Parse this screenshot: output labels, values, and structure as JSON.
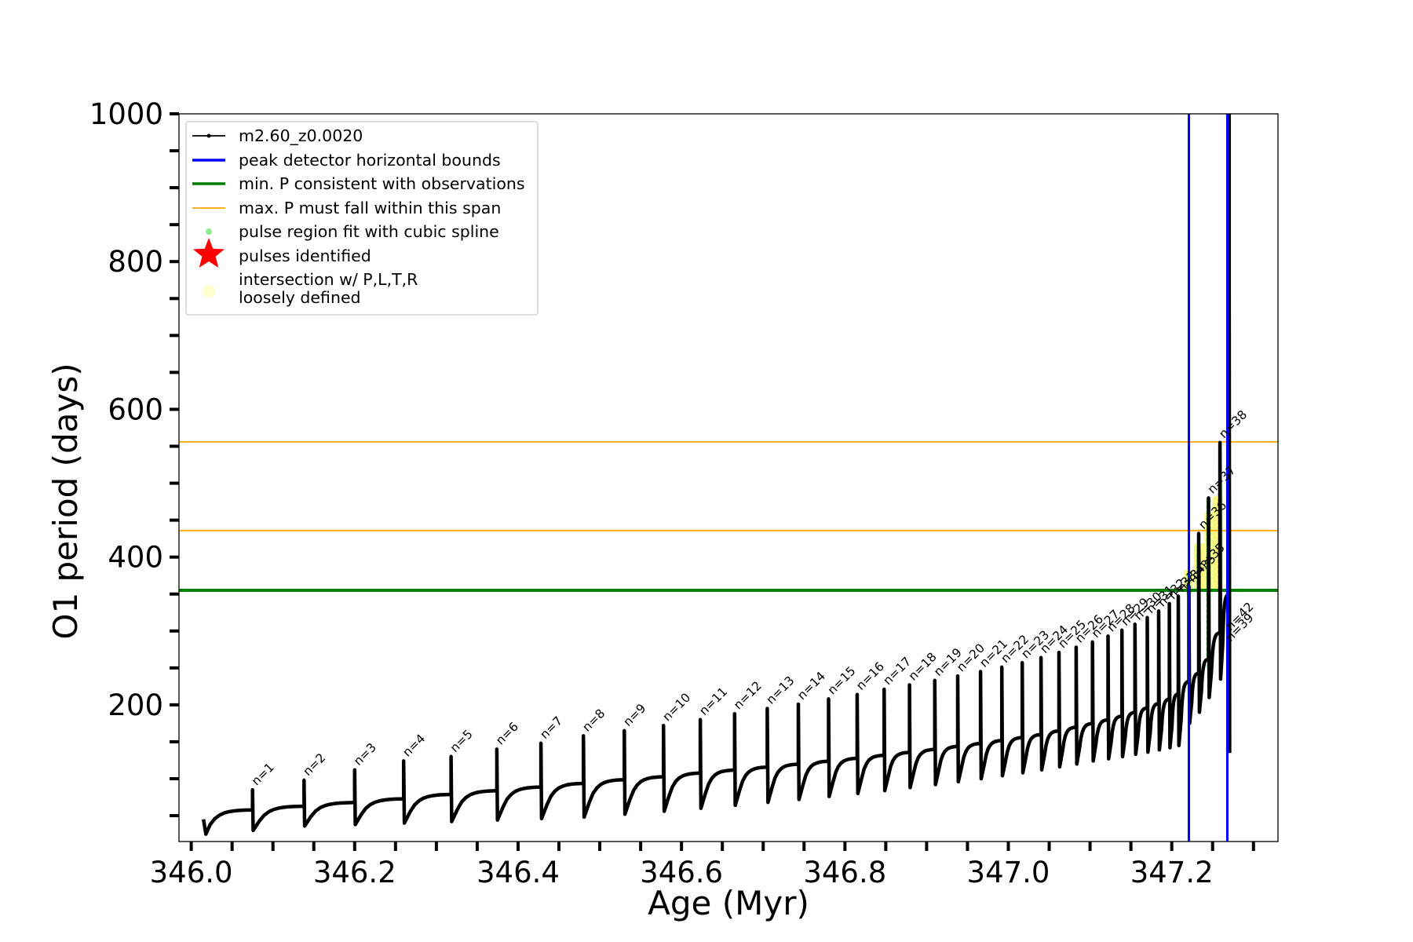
{
  "chart_data": {
    "type": "line",
    "xlabel": "Age (Myr)",
    "ylabel": "O1 period (days)",
    "xlim": [
      345.985,
      347.33
    ],
    "ylim": [
      15,
      1000
    ],
    "xticks": [
      346.0,
      346.2,
      346.4,
      346.6,
      346.8,
      347.0,
      347.2
    ],
    "xtick_labels": [
      "346.0",
      "346.2",
      "346.4",
      "346.6",
      "346.8",
      "347.0",
      "347.2"
    ],
    "xminor_step": 0.05,
    "yticks": [
      200,
      400,
      600,
      800,
      1000
    ],
    "ytick_labels": [
      "200",
      "400",
      "600",
      "800",
      "1000"
    ],
    "yminor_step": 50,
    "grid": false,
    "legend_position": "top-left",
    "legend": [
      {
        "label": "m2.60_z0.0020",
        "kind": "line-marker",
        "color": "#000000"
      },
      {
        "label": "peak detector horizontal bounds",
        "kind": "line",
        "color": "#0000ff"
      },
      {
        "label": "min. P consistent with observations",
        "kind": "line",
        "color": "#008000"
      },
      {
        "label": "max. P must fall within this span",
        "kind": "thin-line",
        "color": "#ffa500"
      },
      {
        "label": "pulse region fit with cubic spline",
        "kind": "dot",
        "color": "#90ee90"
      },
      {
        "label": "pulses identified",
        "kind": "star",
        "color": "#ff0000"
      },
      {
        "label": "intersection w/ P,L,T,R",
        "label2": "loosely defined",
        "kind": "dot",
        "color": "#ffffcc"
      }
    ],
    "series": [
      {
        "name": "m2.60_z0.0020",
        "color": "#000000",
        "kind": "thermal-pulse-track",
        "start": {
          "x": 346.015,
          "y": 45
        },
        "pulses": [
          {
            "n": 1,
            "x": 346.075,
            "before": 58,
            "peak": 85,
            "after": 30
          },
          {
            "n": 2,
            "x": 346.138,
            "before": 63,
            "peak": 98,
            "after": 36
          },
          {
            "n": 3,
            "x": 346.2,
            "before": 68,
            "peak": 112,
            "after": 38
          },
          {
            "n": 4,
            "x": 346.26,
            "before": 73,
            "peak": 124,
            "after": 40
          },
          {
            "n": 5,
            "x": 346.318,
            "before": 79,
            "peak": 130,
            "after": 42
          },
          {
            "n": 6,
            "x": 346.374,
            "before": 84,
            "peak": 140,
            "after": 44
          },
          {
            "n": 7,
            "x": 346.428,
            "before": 89,
            "peak": 148,
            "after": 46
          },
          {
            "n": 8,
            "x": 346.48,
            "before": 94,
            "peak": 158,
            "after": 48
          },
          {
            "n": 9,
            "x": 346.53,
            "before": 99,
            "peak": 165,
            "after": 52
          },
          {
            "n": 10,
            "x": 346.578,
            "before": 103,
            "peak": 172,
            "after": 56
          },
          {
            "n": 11,
            "x": 346.623,
            "before": 108,
            "peak": 180,
            "after": 60
          },
          {
            "n": 12,
            "x": 346.665,
            "before": 112,
            "peak": 188,
            "after": 64
          },
          {
            "n": 13,
            "x": 346.705,
            "before": 116,
            "peak": 195,
            "after": 68
          },
          {
            "n": 14,
            "x": 346.743,
            "before": 120,
            "peak": 201,
            "after": 72
          },
          {
            "n": 15,
            "x": 346.78,
            "before": 124,
            "peak": 208,
            "after": 76
          },
          {
            "n": 16,
            "x": 346.815,
            "before": 128,
            "peak": 214,
            "after": 80
          },
          {
            "n": 17,
            "x": 346.848,
            "before": 132,
            "peak": 221,
            "after": 84
          },
          {
            "n": 18,
            "x": 346.879,
            "before": 136,
            "peak": 227,
            "after": 88
          },
          {
            "n": 19,
            "x": 346.91,
            "before": 140,
            "peak": 233,
            "after": 92
          },
          {
            "n": 20,
            "x": 346.938,
            "before": 144,
            "peak": 239,
            "after": 96
          },
          {
            "n": 21,
            "x": 346.966,
            "before": 148,
            "peak": 245,
            "after": 100
          },
          {
            "n": 22,
            "x": 346.992,
            "before": 152,
            "peak": 251,
            "after": 104
          },
          {
            "n": 23,
            "x": 347.017,
            "before": 156,
            "peak": 257,
            "after": 108
          },
          {
            "n": 24,
            "x": 347.04,
            "before": 160,
            "peak": 264,
            "after": 112
          },
          {
            "n": 25,
            "x": 347.062,
            "before": 165,
            "peak": 271,
            "after": 116
          },
          {
            "n": 26,
            "x": 347.083,
            "before": 170,
            "peak": 278,
            "after": 120
          },
          {
            "n": 27,
            "x": 347.103,
            "before": 175,
            "peak": 285,
            "after": 124
          },
          {
            "n": 28,
            "x": 347.122,
            "before": 180,
            "peak": 293,
            "after": 127
          },
          {
            "n": 29,
            "x": 347.139,
            "before": 185,
            "peak": 301,
            "after": 130
          },
          {
            "n": 30,
            "x": 347.155,
            "before": 190,
            "peak": 309,
            "after": 133
          },
          {
            "n": 31,
            "x": 347.17,
            "before": 196,
            "peak": 318,
            "after": 136
          },
          {
            "n": 32,
            "x": 347.184,
            "before": 202,
            "peak": 327,
            "after": 139
          },
          {
            "n": 33,
            "x": 347.197,
            "before": 208,
            "peak": 337,
            "after": 142
          },
          {
            "n": 34,
            "x": 347.208,
            "before": 215,
            "peak": 347,
            "after": 145
          },
          {
            "n": 35,
            "x": 347.221,
            "before": 232,
            "peak": 360,
            "after": 175
          },
          {
            "n": 36,
            "x": 347.233,
            "before": 243,
            "peak": 432,
            "after": 190
          },
          {
            "n": 37,
            "x": 347.245,
            "before": 262,
            "peak": 480,
            "after": 210
          },
          {
            "n": 38,
            "x": 347.259,
            "before": 298,
            "peak": 555,
            "after": 235
          },
          {
            "n": 39,
            "x": 347.27,
            "before": 350,
            "peak": 1000,
            "after": 135
          }
        ]
      },
      {
        "name": "peak detector horizontal bounds",
        "color": "#0000ff",
        "type": "vline",
        "x": [
          347.221,
          347.268
        ]
      },
      {
        "name": "min. P consistent with observations",
        "color": "#008000",
        "type": "hline",
        "y": 355
      },
      {
        "name": "max. P must fall within this span",
        "color": "#ffa500",
        "type": "hline",
        "y": [
          436,
          556
        ]
      }
    ],
    "pulse_labels": [
      {
        "text": "n=1",
        "x": 346.08,
        "y": 90
      },
      {
        "text": "n=2",
        "x": 346.143,
        "y": 103
      },
      {
        "text": "n=3",
        "x": 346.205,
        "y": 117
      },
      {
        "text": "n=4",
        "x": 346.265,
        "y": 129
      },
      {
        "text": "n=5",
        "x": 346.323,
        "y": 135
      },
      {
        "text": "n=6",
        "x": 346.379,
        "y": 145
      },
      {
        "text": "n=7",
        "x": 346.433,
        "y": 153
      },
      {
        "text": "n=8",
        "x": 346.485,
        "y": 163
      },
      {
        "text": "n=9",
        "x": 346.535,
        "y": 170
      },
      {
        "text": "n=10",
        "x": 346.583,
        "y": 177
      },
      {
        "text": "n=11",
        "x": 346.628,
        "y": 185
      },
      {
        "text": "n=12",
        "x": 346.67,
        "y": 193
      },
      {
        "text": "n=13",
        "x": 346.71,
        "y": 200
      },
      {
        "text": "n=14",
        "x": 346.748,
        "y": 206
      },
      {
        "text": "n=15",
        "x": 346.785,
        "y": 213
      },
      {
        "text": "n=16",
        "x": 346.82,
        "y": 219
      },
      {
        "text": "n=17",
        "x": 346.853,
        "y": 226
      },
      {
        "text": "n=18",
        "x": 346.884,
        "y": 232
      },
      {
        "text": "n=19",
        "x": 346.915,
        "y": 238
      },
      {
        "text": "n=20",
        "x": 346.943,
        "y": 244
      },
      {
        "text": "n=21",
        "x": 346.971,
        "y": 250
      },
      {
        "text": "n=22",
        "x": 346.997,
        "y": 256
      },
      {
        "text": "n=23",
        "x": 347.022,
        "y": 262
      },
      {
        "text": "n=24",
        "x": 347.045,
        "y": 269
      },
      {
        "text": "n=25",
        "x": 347.067,
        "y": 276
      },
      {
        "text": "n=26",
        "x": 347.088,
        "y": 283
      },
      {
        "text": "n=27",
        "x": 347.108,
        "y": 290
      },
      {
        "text": "n=28",
        "x": 347.127,
        "y": 298
      },
      {
        "text": "n=29",
        "x": 347.144,
        "y": 306
      },
      {
        "text": "n=30",
        "x": 347.16,
        "y": 314
      },
      {
        "text": "n=31",
        "x": 347.175,
        "y": 323
      },
      {
        "text": "n=32",
        "x": 347.189,
        "y": 332
      },
      {
        "text": "n=33",
        "x": 347.202,
        "y": 342
      },
      {
        "text": "n=34",
        "x": 347.213,
        "y": 352
      },
      {
        "text": "n=35",
        "x": 347.226,
        "y": 365
      },
      {
        "text": "n=35",
        "x": 347.237,
        "y": 380
      },
      {
        "text": "n=36",
        "x": 347.239,
        "y": 437
      },
      {
        "text": "n=37",
        "x": 347.25,
        "y": 485
      },
      {
        "text": "n=38",
        "x": 347.264,
        "y": 560
      },
      {
        "text": "n=42",
        "x": 347.272,
        "y": 300
      },
      {
        "text": "n=39",
        "x": 347.272,
        "y": 285
      }
    ],
    "green_fit_regions": [
      {
        "x": 347.221,
        "y0": 350,
        "y1": 380
      },
      {
        "x": 347.233,
        "y0": 355,
        "y1": 410
      },
      {
        "x": 347.245,
        "y0": 250,
        "y1": 478
      },
      {
        "x": 347.259,
        "y0": 355,
        "y1": 500
      }
    ],
    "yellow_regions": [
      {
        "x0": 347.215,
        "x1": 347.226,
        "y0": 355,
        "y1": 382
      },
      {
        "x0": 347.227,
        "x1": 347.24,
        "y0": 355,
        "y1": 418
      },
      {
        "x0": 347.24,
        "x1": 347.25,
        "y0": 355,
        "y1": 460
      },
      {
        "x0": 347.25,
        "x1": 347.263,
        "y0": 355,
        "y1": 482
      }
    ]
  }
}
